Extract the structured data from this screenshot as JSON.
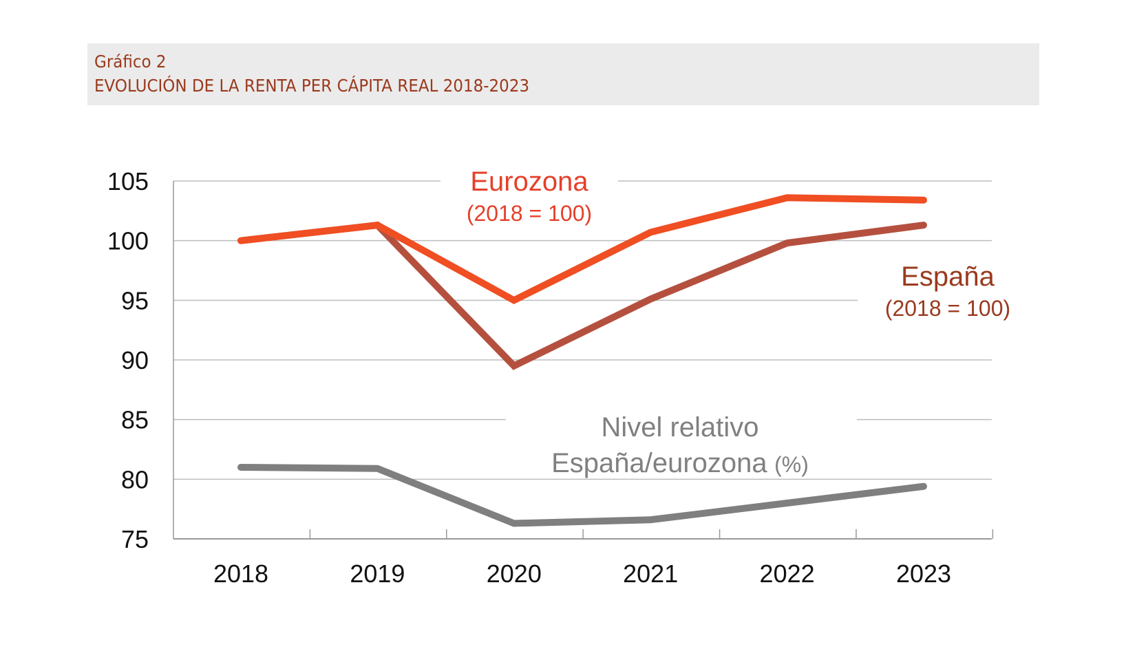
{
  "header": {
    "label": "Gráfico 2",
    "title": "EVOLUCIÓN DE LA RENTA PER CÁPITA REAL 2018-2023"
  },
  "colors": {
    "eurozona": "#f04e23",
    "espana": "#b5503f",
    "relativo": "#7f7f7f",
    "header_bg": "#ebebeb",
    "header_text": "#9a3a1e",
    "grid": "#bdbdbd",
    "axis": "#999999"
  },
  "chart_data": {
    "type": "line",
    "title": "EVOLUCIÓN DE LA RENTA PER CÁPITA REAL 2018-2023",
    "xlabel": "",
    "ylabel": "",
    "x": [
      "2018",
      "2019",
      "2020",
      "2021",
      "2022",
      "2023"
    ],
    "ylim": [
      75,
      105
    ],
    "yticks": [
      "105",
      "100",
      "95",
      "90",
      "85",
      "80",
      "75"
    ],
    "ytick_values": [
      105,
      100,
      95,
      90,
      85,
      80,
      75
    ],
    "grid": true,
    "legend": "inline labels",
    "series": [
      {
        "name": "Eurozona (2018 = 100)",
        "label_main": "Eurozona",
        "label_sub": "(2018 = 100)",
        "values": [
          100.0,
          101.3,
          95.0,
          100.7,
          103.6,
          103.4
        ]
      },
      {
        "name": "España (2018 = 100)",
        "label_main": "España",
        "label_sub": "(2018 = 100)",
        "values": [
          100.0,
          101.3,
          89.5,
          95.1,
          99.8,
          101.3
        ]
      },
      {
        "name": "Nivel relativo España/eurozona (%)",
        "label_main": "Nivel relativo",
        "label_sub": "España/eurozona",
        "label_unit": "(%)",
        "values": [
          81.0,
          80.9,
          76.3,
          76.6,
          78.0,
          79.4
        ]
      }
    ]
  }
}
